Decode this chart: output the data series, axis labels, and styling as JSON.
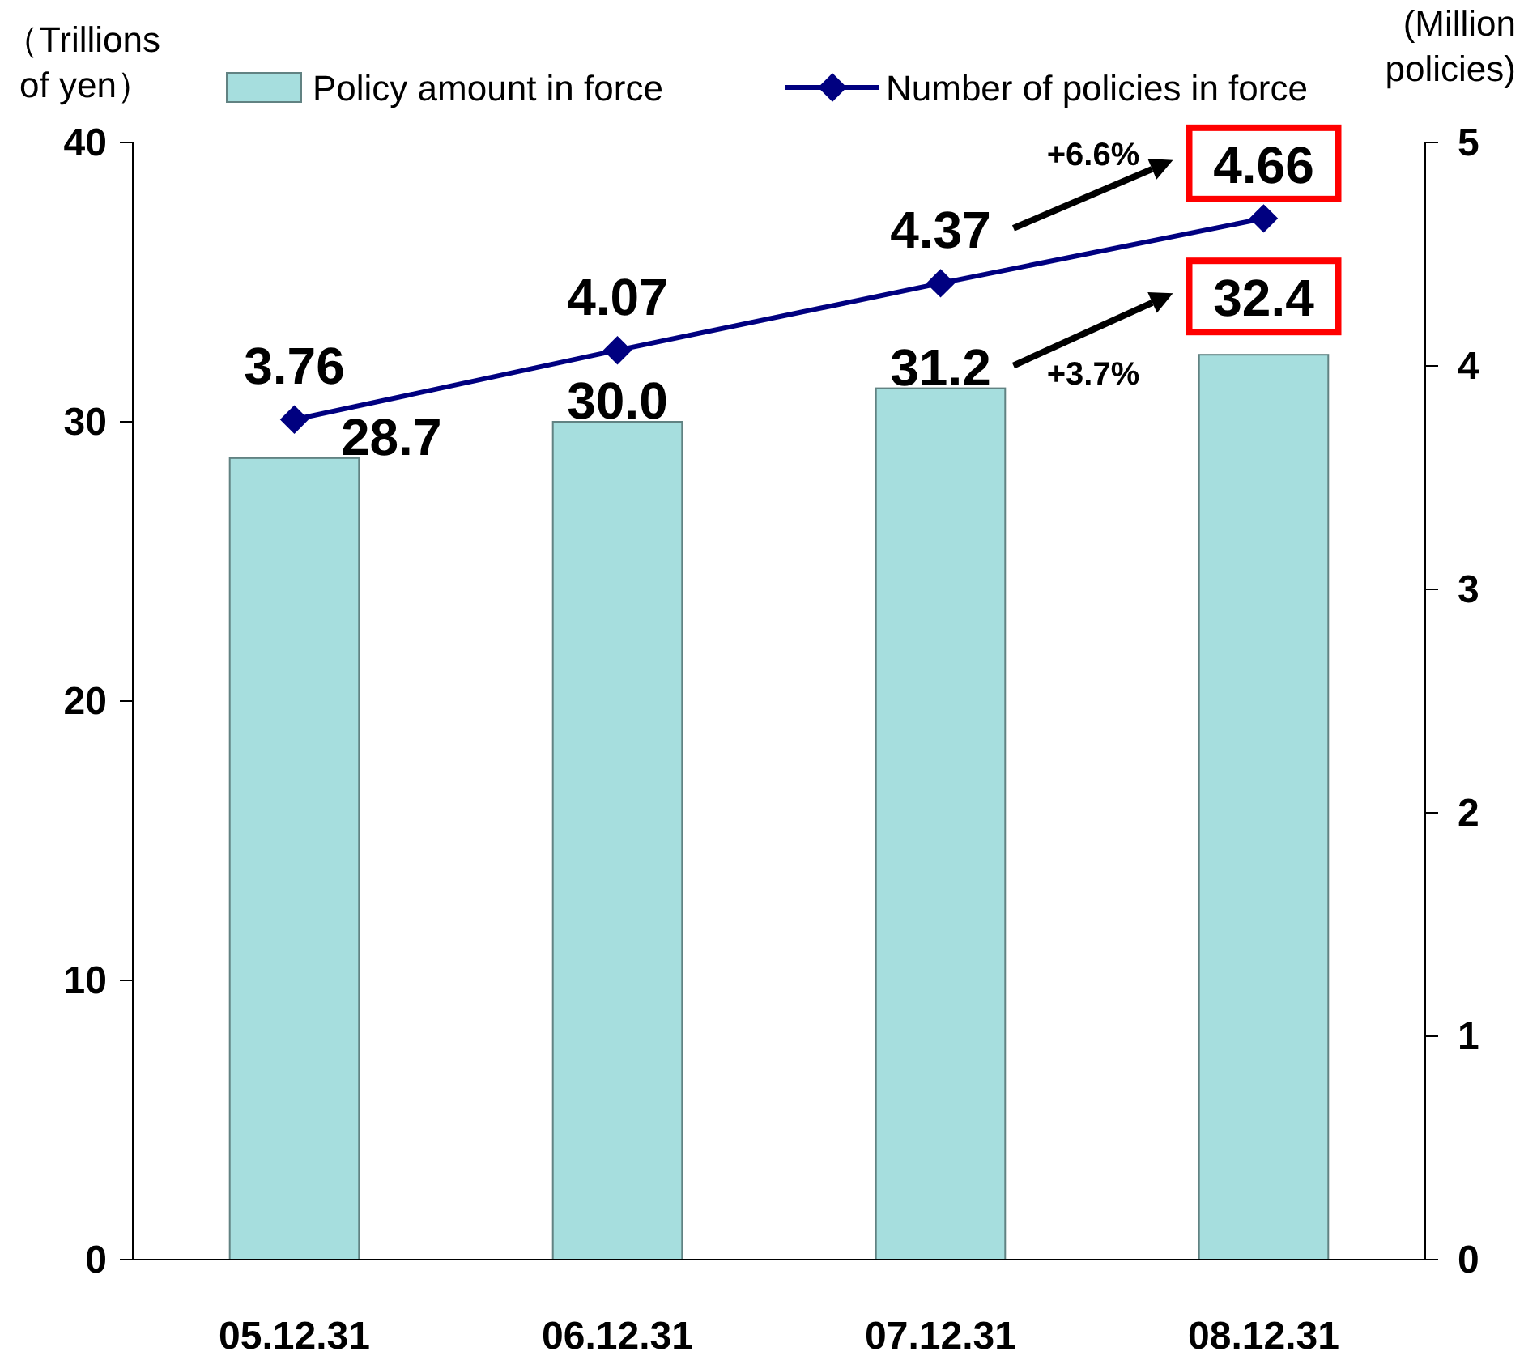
{
  "chart_data": {
    "type": "bar",
    "categories": [
      "05.12.31",
      "06.12.31",
      "07.12.31",
      "08.12.31"
    ],
    "ylabel": "（Trillions of yen）",
    "y2label": "(Million policies)",
    "series": [
      {
        "name": "Policy amount in force",
        "color": "#a6dede",
        "values": [
          28.7,
          30.0,
          31.2,
          32.4
        ],
        "value_labels": [
          "28.7",
          "30.0",
          "31.2",
          "32.4"
        ]
      },
      {
        "name": "Number of policies in force",
        "type": "line",
        "axis": "y2",
        "color": "#000080",
        "marker": "diamond",
        "values": [
          3.76,
          4.07,
          4.37,
          4.66
        ]
      }
    ],
    "ylim": [
      0,
      40
    ],
    "yticks": [
      0,
      10,
      20,
      30,
      40
    ],
    "y2lim": [
      0,
      5
    ],
    "y2ticks": [
      0,
      1,
      2,
      3,
      4,
      5
    ],
    "data_labels": true,
    "legend": "top",
    "grid": false,
    "annotations": [
      "+6.6%",
      "+3.7%"
    ]
  }
}
